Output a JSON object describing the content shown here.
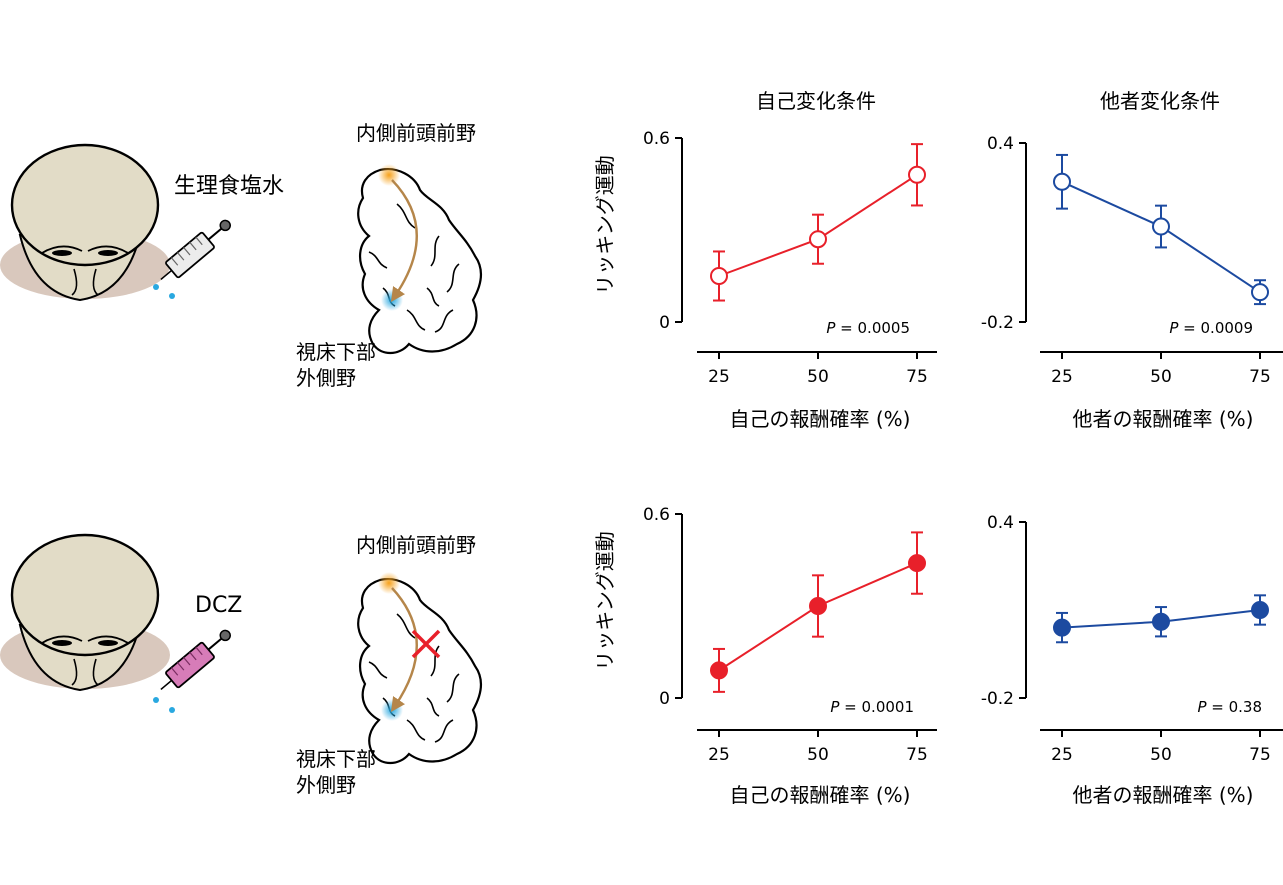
{
  "labels": {
    "saline": "生理食塩水",
    "dcz": "DCZ",
    "mpfc": "内側前頭前野",
    "lh_line1": "視床下部",
    "lh_line2": "外側野",
    "self_condition": "自己変化条件",
    "other_condition": "他者変化条件"
  },
  "colors": {
    "self": "#e8202a",
    "other": "#1c4aa0",
    "head": "#e2dcc7",
    "shadow": "#d9c8bd",
    "arrow": "#b5864a"
  },
  "icons": [
    "monkey-head-icon",
    "syringe-icon",
    "brain-section-icon"
  ],
  "chart_data": [
    {
      "type": "line",
      "row": "saline",
      "column": "self",
      "x": [
        25,
        50,
        75
      ],
      "series": [
        {
          "values": [
            0.15,
            0.27,
            0.48
          ],
          "err": [
            0.08,
            0.08,
            0.1
          ],
          "filled": false
        }
      ],
      "xlabel": "自己の報酬確率 (%)",
      "ylabel": "リッキング運動",
      "ylim": [
        0,
        0.6
      ],
      "yticks": [
        "0",
        "0.6"
      ],
      "xticks": [
        "25",
        "50",
        "75"
      ],
      "p_label": "P",
      "p_value": " = 0.0005"
    },
    {
      "type": "line",
      "row": "saline",
      "column": "other",
      "x": [
        25,
        50,
        75
      ],
      "series": [
        {
          "values": [
            0.27,
            0.12,
            -0.1
          ],
          "err": [
            0.09,
            0.07,
            0.04
          ],
          "filled": false
        }
      ],
      "xlabel": "他者の報酬確率 (%)",
      "ylabel": "",
      "ylim": [
        -0.2,
        0.4
      ],
      "yticks": [
        "-0.2",
        "0.4"
      ],
      "xticks": [
        "25",
        "50",
        "75"
      ],
      "p_label": "P",
      "p_value": " = 0.0009"
    },
    {
      "type": "line",
      "row": "dcz",
      "column": "self",
      "x": [
        25,
        50,
        75
      ],
      "series": [
        {
          "values": [
            0.09,
            0.3,
            0.44
          ],
          "err": [
            0.07,
            0.1,
            0.1
          ],
          "filled": true
        }
      ],
      "xlabel": "自己の報酬確率 (%)",
      "ylabel": "リッキング運動",
      "ylim": [
        0,
        0.6
      ],
      "yticks": [
        "0",
        "0.6"
      ],
      "xticks": [
        "25",
        "50",
        "75"
      ],
      "p_label": "P",
      "p_value": " = 0.0001"
    },
    {
      "type": "line",
      "row": "dcz",
      "column": "other",
      "x": [
        25,
        50,
        75
      ],
      "series": [
        {
          "values": [
            0.04,
            0.06,
            0.1
          ],
          "err": [
            0.05,
            0.05,
            0.05
          ],
          "filled": true
        }
      ],
      "xlabel": "他者の報酬確率 (%)",
      "ylabel": "",
      "ylim": [
        -0.2,
        0.4
      ],
      "yticks": [
        "-0.2",
        "0.4"
      ],
      "xticks": [
        "25",
        "50",
        "75"
      ],
      "p_label": "P",
      "p_value": " = 0.38"
    }
  ]
}
